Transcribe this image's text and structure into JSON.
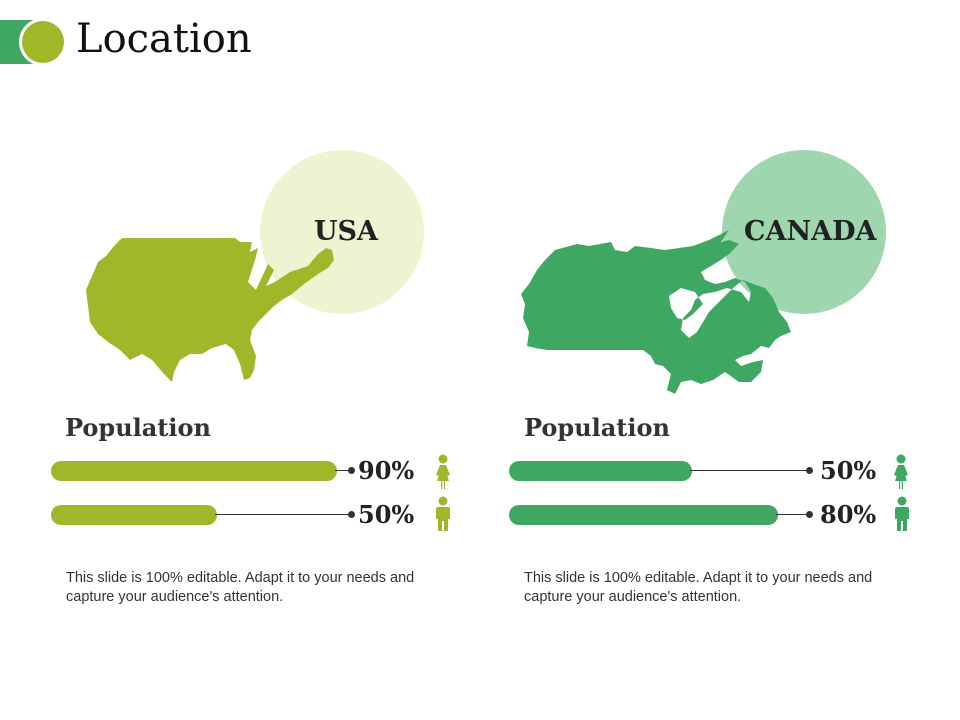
{
  "title": "Location",
  "colors": {
    "usa_green": "#a0b72a",
    "usa_circle": "#eef4d2",
    "canada_green": "#3ea862",
    "canada_circle": "#9ed6b0",
    "header_square": "#3ea862",
    "header_circle": "#a0b72a"
  },
  "panels": [
    {
      "country": "USA",
      "map_icon": "usa-map-icon",
      "section_title": "Population",
      "rows": [
        {
          "label": "90%",
          "value": 90,
          "icon": "female-person-icon"
        },
        {
          "label": "50%",
          "value": 50,
          "icon": "male-person-icon"
        }
      ],
      "description": "This slide is 100% editable. Adapt it to your needs and capture your audience's attention."
    },
    {
      "country": "CANADA",
      "map_icon": "canada-map-icon",
      "section_title": "Population",
      "rows": [
        {
          "label": "50%",
          "value": 50,
          "icon": "female-person-icon"
        },
        {
          "label": "80%",
          "value": 80,
          "icon": "male-person-icon"
        }
      ],
      "description": "This slide is 100% editable. Adapt it to your needs and capture your audience's attention."
    }
  ]
}
